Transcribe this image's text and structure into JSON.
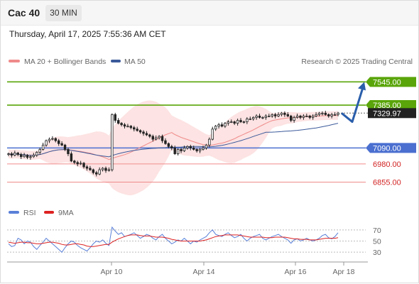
{
  "header": {
    "instrument": "Cac 40",
    "interval": "30 MIN",
    "timestamp": "Thursday, April 17, 2025 7:55:36 AM CET"
  },
  "legend": {
    "bollinger_label": "MA 20 + Bollinger Bands",
    "ma50_label": "MA 50",
    "credit": "Research © 2025 Trading Central"
  },
  "colors": {
    "resistance_line": "#5aa50a",
    "pivot_line": "#4a6fd0",
    "support_line": "#f08a8a",
    "support_text": "#d22222",
    "candle": "#222222",
    "bollinger_fill": "#fde3e3",
    "ma20": "#f08a8a",
    "ma50": "#3b5a9a",
    "forecast_arrow": "#2a5eab",
    "rsi": "#5a80d8",
    "rsi_ma": "#dd2222"
  },
  "chart_data": [
    {
      "type": "candlestick",
      "x_ticks": [
        "Apr 10",
        "Apr 14",
        "Apr 16",
        "Apr 18"
      ],
      "last_price": "7329.97",
      "ylim": [
        6730,
        7620
      ],
      "levels": [
        {
          "value": 7545,
          "label": "7545.00",
          "kind": "resistance"
        },
        {
          "value": 7385,
          "label": "7385.00",
          "kind": "resistance"
        },
        {
          "value": 7090,
          "label": "7090.00",
          "kind": "pivot"
        },
        {
          "value": 6980,
          "label": "6980.00",
          "kind": "support"
        },
        {
          "value": 6855,
          "label": "6855.00",
          "kind": "support"
        }
      ],
      "indicators": [
        "MA 20 + Bollinger Bands",
        "MA 50"
      ],
      "forecast": {
        "from": 7330,
        "dip_to": 7270,
        "target": 7545
      },
      "series": {
        "close": [
          7050,
          7040,
          7055,
          7045,
          7030,
          7040,
          7025,
          7030,
          7040,
          7060,
          7080,
          7110,
          7140,
          7150,
          7155,
          7140,
          7120,
          7110,
          7080,
          7050,
          7000,
          6990,
          6980,
          6985,
          6960,
          6950,
          6940,
          6920,
          6910,
          6940,
          6950,
          6935,
          6940,
          7320,
          7280,
          7260,
          7250,
          7240,
          7240,
          7230,
          7220,
          7210,
          7200,
          7190,
          7180,
          7170,
          7150,
          7160,
          7170,
          7140,
          7120,
          7100,
          7090,
          7050,
          7080,
          7070,
          7090,
          7100,
          7090,
          7080,
          7070,
          7080,
          7090,
          7110,
          7150,
          7220,
          7240,
          7250,
          7240,
          7260,
          7270,
          7270,
          7260,
          7280,
          7270,
          7270,
          7290,
          7290,
          7300,
          7310,
          7300,
          7300,
          7310,
          7310,
          7320,
          7310,
          7320,
          7330,
          7320,
          7310,
          7280,
          7300,
          7310,
          7300,
          7310,
          7310,
          7300,
          7310,
          7320,
          7330,
          7330,
          7320,
          7310,
          7320,
          7320,
          7330
        ]
      }
    },
    {
      "type": "line",
      "legend": [
        "RSI",
        "9MA"
      ],
      "y_ticks": [
        70,
        50,
        30
      ],
      "ylim": [
        20,
        80
      ],
      "series": [
        {
          "name": "RSI",
          "values": [
            45,
            40,
            42,
            55,
            52,
            45,
            50,
            48,
            40,
            35,
            42,
            48,
            55,
            50,
            45,
            40,
            35,
            30,
            38,
            45,
            50,
            48,
            42,
            38,
            35,
            32,
            38,
            45,
            50,
            48,
            52,
            46,
            42,
            75,
            68,
            62,
            65,
            58,
            60,
            62,
            65,
            60,
            55,
            58,
            62,
            60,
            55,
            52,
            58,
            62,
            55,
            50,
            45,
            48,
            52,
            50,
            55,
            50,
            45,
            50,
            48,
            52,
            55,
            58,
            65,
            70,
            62,
            60,
            58,
            62,
            65,
            60,
            56,
            58,
            62,
            55,
            50,
            55,
            58,
            60,
            62,
            55,
            52,
            55,
            58,
            60,
            62,
            58,
            55,
            52,
            46,
            52,
            54,
            50,
            52,
            55,
            52,
            50,
            52,
            55,
            60,
            62,
            56,
            54,
            58,
            65
          ]
        },
        {
          "name": "9MA",
          "values": [
            48,
            47,
            46,
            47,
            48,
            48,
            47,
            47,
            46,
            45,
            45,
            46,
            47,
            48,
            48,
            47,
            46,
            44,
            43,
            43,
            44,
            45,
            45,
            44,
            43,
            41,
            40,
            40,
            41,
            42,
            43,
            44,
            44,
            48,
            51,
            54,
            56,
            58,
            60,
            61,
            61,
            61,
            60,
            59,
            59,
            59,
            58,
            57,
            57,
            57,
            56,
            55,
            53,
            52,
            51,
            50,
            50,
            50,
            50,
            50,
            50,
            50,
            51,
            52,
            54,
            56,
            58,
            59,
            60,
            61,
            61,
            61,
            61,
            61,
            60,
            59,
            58,
            57,
            57,
            57,
            57,
            57,
            56,
            56,
            56,
            57,
            57,
            57,
            57,
            56,
            55,
            54,
            54,
            53,
            53,
            53,
            52,
            52,
            52,
            53,
            54,
            55,
            55,
            55,
            55,
            56
          ]
        }
      ]
    }
  ]
}
